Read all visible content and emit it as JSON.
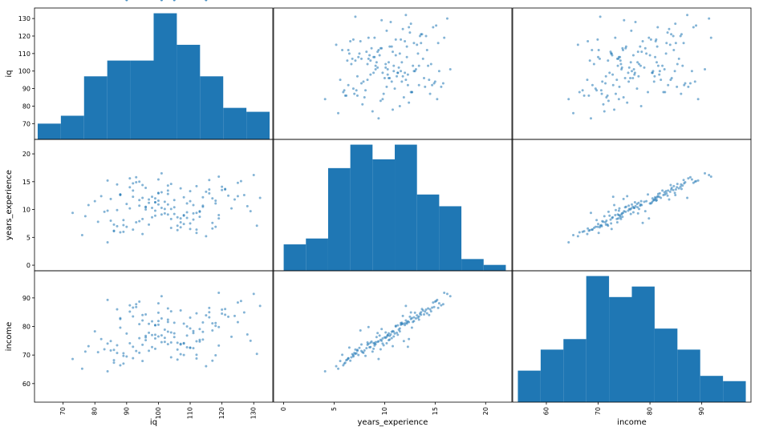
{
  "chart_data": {
    "type": "scatter_matrix",
    "variables": [
      "iq",
      "years_experience",
      "income"
    ],
    "colors": {
      "marks": "#1f77b4",
      "frame": "#000000",
      "background": "#ffffff"
    },
    "ranges": {
      "iq": [
        61,
        136
      ],
      "years_experience": [
        -1,
        22.6
      ],
      "income": [
        53.5,
        99.5
      ]
    },
    "ticks": {
      "iq": [
        70,
        80,
        90,
        100,
        110,
        120,
        130
      ],
      "years_experience": [
        0,
        5,
        10,
        15,
        20
      ],
      "income": [
        60,
        70,
        80,
        90
      ]
    },
    "histograms": {
      "iq": {
        "edges": [
          62,
          69.3,
          76.6,
          83.9,
          91.2,
          98.5,
          105.8,
          113.1,
          120.4,
          127.7,
          135
        ],
        "counts": [
          4,
          6,
          16,
          20,
          20,
          32,
          24,
          16,
          8,
          7
        ]
      },
      "years_experience": {
        "edges": [
          0,
          2.2,
          4.4,
          6.6,
          8.8,
          11,
          13.2,
          15.4,
          17.6,
          19.8,
          22
        ],
        "counts": [
          9,
          11,
          35,
          43,
          38,
          43,
          26,
          22,
          4,
          2
        ]
      },
      "income": {
        "edges": [
          54.5,
          58.9,
          63.3,
          67.7,
          72.1,
          76.5,
          80.9,
          85.3,
          89.7,
          94.1,
          98.5
        ],
        "counts": [
          6,
          10,
          12,
          24,
          20,
          22,
          14,
          10,
          5,
          4
        ]
      }
    },
    "sample": {
      "iq": [
        101,
        86,
        124,
        92,
        88,
        119,
        105,
        112,
        97,
        132,
        78,
        95,
        103,
        109,
        84,
        116,
        99,
        91,
        127,
        107,
        82,
        113,
        94,
        104,
        118,
        89,
        100,
        110,
        96,
        121,
        87,
        106,
        93,
        115,
        80,
        102,
        98,
        125,
        90,
        108,
        111,
        85,
        117,
        73,
        101,
        130,
        94,
        104,
        88,
        112,
        99,
        120,
        83,
        107,
        96,
        114,
        92,
        103,
        126,
        77,
        100,
        110,
        89,
        118,
        105,
        95,
        86,
        122,
        101,
        113,
        91,
        108,
        97,
        116,
        84,
        104,
        99,
        128,
        93,
        111,
        102,
        81,
        115,
        96,
        106,
        88,
        119,
        100,
        109,
        94,
        123,
        87,
        103,
        112,
        98,
        117,
        90,
        107,
        85,
        114,
        101,
        129,
        95,
        110,
        92,
        105,
        76,
        120,
        99,
        108,
        89,
        116,
        103,
        94,
        111,
        86,
        125,
        100,
        107,
        97,
        113,
        91,
        104,
        118,
        88,
        102,
        110,
        93,
        121,
        96,
        106,
        84,
        114,
        99,
        109,
        131,
        87,
        103,
        95,
        117,
        92,
        108,
        100,
        112,
        98,
        119,
        90,
        105,
        115,
        101
      ],
      "years_experience": [
        9.1,
        6.2,
        11.8,
        12.3,
        5.9,
        8.4,
        11.7,
        14.2,
        7.3,
        12.1,
        10.8,
        5.6,
        13.4,
        9.5,
        4.1,
        15.3,
        8.9,
        10.2,
        12.6,
        6.8,
        12.4,
        9.7,
        7.9,
        14.6,
        11.1,
        8.1,
        12.9,
        6.5,
        10.4,
        13.7,
        9.9,
        7.1,
        15.8,
        5.2,
        11.5,
        10.1,
        8.6,
        14.8,
        6.9,
        12.2,
        9.3,
        11.9,
        7.6,
        9.4,
        13.1,
        16.2,
        10.7,
        8.3,
        12.7,
        5.8,
        11.3,
        14.1,
        9.6,
        7.7,
        13.9,
        10.5,
        6.4,
        12.8,
        15.1,
        8.8,
        10.9,
        13.3,
        7.2,
        11.6,
        9.2,
        14.4,
        6.1,
        12.5,
        10.3,
        8.7,
        15.6,
        7.4,
        11.2,
        13.6,
        9.8,
        6.7,
        12.0,
        10.6,
        14.9,
        8.2,
        11.4,
        7.8,
        13.2,
        10.0,
        6.3,
        12.6,
        9.0,
        15.4,
        8.5,
        11.7,
        10.2,
        7.0,
        14.3,
        9.4,
        12.3,
        6.6,
        11.0,
        13.8,
        8.0,
        10.7,
        16.5,
        9.7,
        12.1,
        7.5,
        14.7,
        10.4,
        5.4,
        13.5,
        11.3,
        8.9,
        6.0,
        12.9,
        9.1,
        15.0,
        10.8,
        7.3,
        12.4,
        13.0,
        8.4,
        11.8,
        9.6,
        14.0,
        10.1,
        6.9,
        12.7,
        9.3,
        11.5,
        7.7,
        13.6,
        10.5,
        8.6,
        15.2,
        12.2,
        9.8,
        11.1,
        7.1,
        14.5,
        10.9,
        8.3,
        12.0,
        13.4,
        9.0,
        11.6,
        6.4,
        10.3,
        15.9
      ],
      "income": [
        74.5,
        68.2,
        83.7,
        72.9,
        66.4,
        79.8,
        81.3,
        84.6,
        71.5,
        87.2,
        73.1,
        67.9,
        82.4,
        76.8,
        64.3,
        86.5,
        72.2,
        74.1,
        84.9,
        70.3,
        75.6,
        79.1,
        70.8,
        85.3,
        80.2,
        69.7,
        81.9,
        72.6,
        75.2,
        86.1,
        73.4,
        71.9,
        87.8,
        66.1,
        78.3,
        76.0,
        72.8,
        88.4,
        69.5,
        81.0,
        77.7,
        74.9,
        78.6,
        68.6,
        82.8,
        91.4,
        75.9,
        74.4,
        79.6,
        70.1,
        77.1,
        85.9,
        72.0,
        73.7,
        84.2,
        75.4,
        68.9,
        81.6,
        88.9,
        71.2,
        76.5,
        83.1,
        70.6,
        81.2,
        76.3,
        84.0,
        67.3,
        83.4,
        76.9,
        74.7,
        87.4,
        70.0,
        77.8,
        85.0,
        74.0,
        69.2,
        80.5,
        77.2,
        86.8,
        72.4,
        78.9,
        71.0,
        83.9,
        76.2,
        68.4,
        82.6,
        73.3,
        88.1,
        72.7,
        80.8,
        76.4,
        70.7,
        86.3,
        74.8,
        81.8,
        68.0,
        77.5,
        85.6,
        71.6,
        78.1,
        90.6,
        75.0,
        82.1,
        72.5,
        86.6,
        77.6,
        65.2,
        84.5,
        80.4,
        74.2,
        67.0,
        83.2,
        73.8,
        88.7,
        78.4,
        71.8,
        81.5,
        84.8,
        73.9,
        80.9,
        75.3,
        85.2,
        77.9,
        69.9,
        82.9,
        74.6,
        79.3,
        71.4,
        84.1,
        76.7,
        74.3,
        89.3,
        81.4,
        75.8,
        80.0,
        70.4,
        86.0,
        78.2,
        73.6,
        81.1,
        83.5,
        74.0,
        80.6,
        68.8,
        77.0,
        91.8
      ]
    }
  }
}
